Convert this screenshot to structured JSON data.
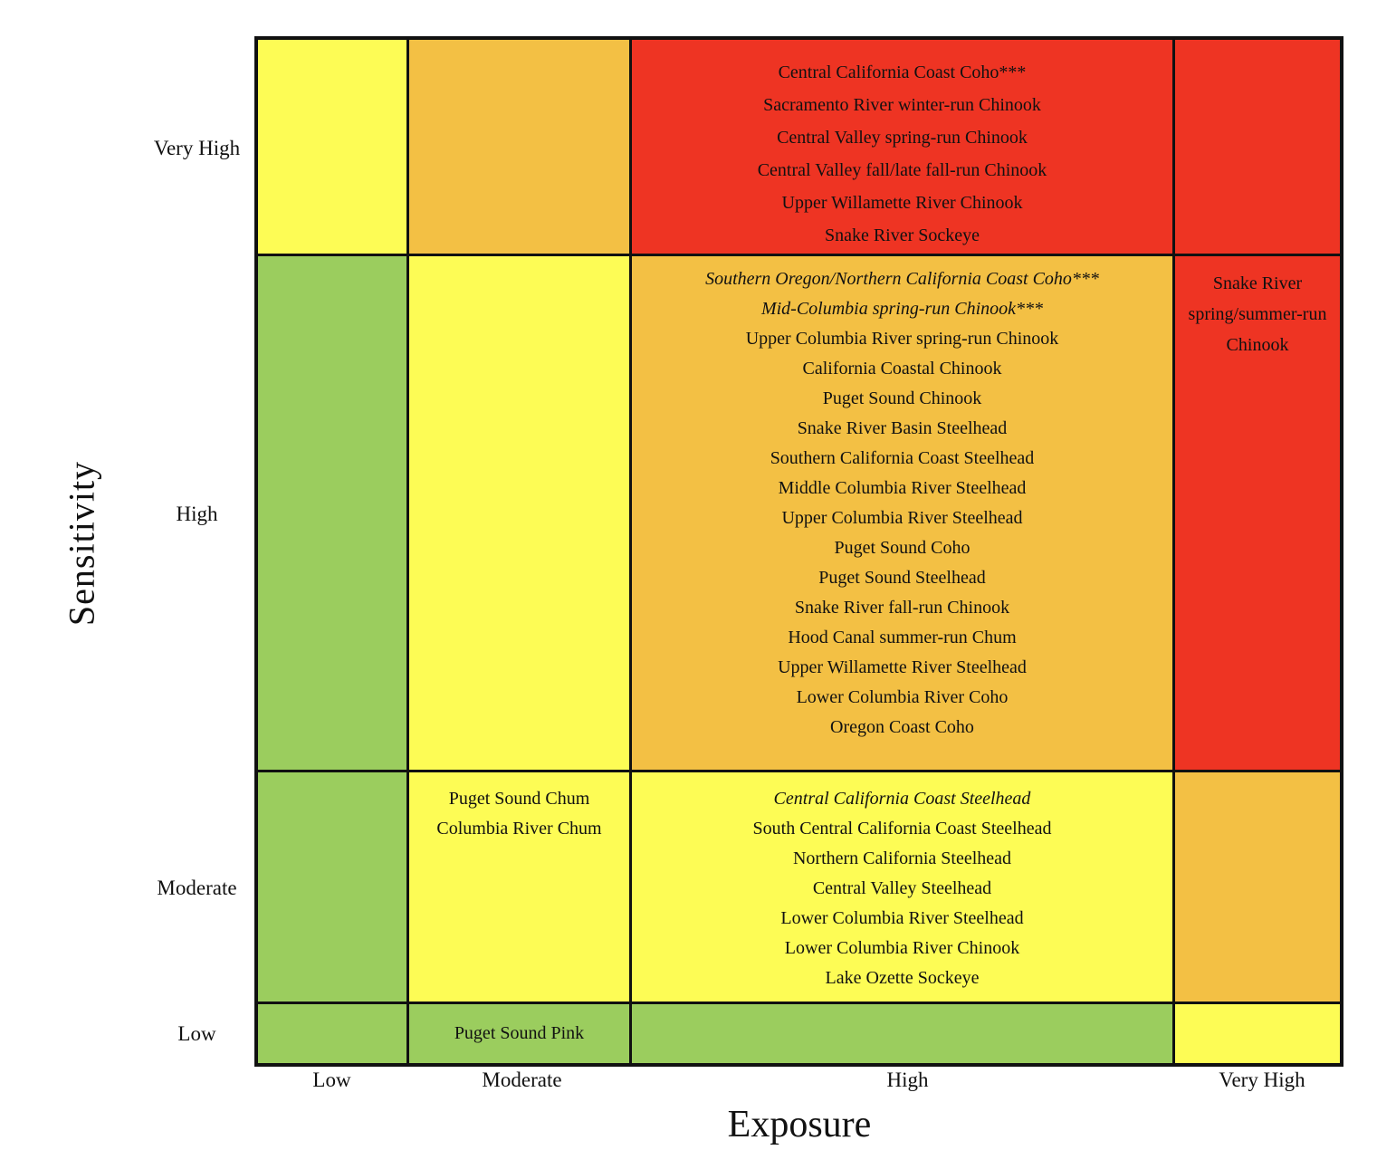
{
  "colors": {
    "green": "#9bcd5e",
    "yellow": "#fdfc55",
    "orange": "#f3c044",
    "red": "#ee3423",
    "border": "#111111"
  },
  "chart_data": {
    "type": "heatmap",
    "xlabel": "Exposure",
    "ylabel": "Sensitivity",
    "x_categories": [
      "Low",
      "Moderate",
      "High",
      "Very High"
    ],
    "y_categories": [
      "Very High",
      "High",
      "Moderate",
      "Low"
    ],
    "rows": [
      {
        "sensitivity": "Very High",
        "cells": [
          {
            "color": "yellow",
            "items": []
          },
          {
            "color": "orange",
            "items": []
          },
          {
            "color": "red",
            "items": [
              {
                "text": "Central California Coast Coho***",
                "italic": false
              },
              {
                "text": "Sacramento River winter-run Chinook",
                "italic": false
              },
              {
                "text": "Central Valley spring-run Chinook",
                "italic": false
              },
              {
                "text": "Central Valley fall/late fall-run Chinook",
                "italic": false
              },
              {
                "text": "Upper Willamette River Chinook",
                "italic": false
              },
              {
                "text": "Snake River Sockeye",
                "italic": false
              }
            ]
          },
          {
            "color": "red",
            "items": []
          }
        ]
      },
      {
        "sensitivity": "High",
        "cells": [
          {
            "color": "green",
            "items": []
          },
          {
            "color": "yellow",
            "items": []
          },
          {
            "color": "orange",
            "items": [
              {
                "text": "Southern Oregon/Northern California Coast Coho***",
                "italic": true
              },
              {
                "text": "Mid-Columbia spring-run Chinook***",
                "italic": true
              },
              {
                "text": "Upper Columbia River spring-run Chinook",
                "italic": false
              },
              {
                "text": "California Coastal Chinook",
                "italic": false
              },
              {
                "text": "Puget Sound Chinook",
                "italic": false
              },
              {
                "text": "Snake River Basin Steelhead",
                "italic": false
              },
              {
                "text": "Southern California Coast Steelhead",
                "italic": false
              },
              {
                "text": "Middle Columbia River Steelhead",
                "italic": false
              },
              {
                "text": "Upper Columbia River Steelhead",
                "italic": false
              },
              {
                "text": "Puget Sound Coho",
                "italic": false
              },
              {
                "text": "Puget Sound Steelhead",
                "italic": false
              },
              {
                "text": "Snake River fall-run Chinook",
                "italic": false
              },
              {
                "text": "Hood Canal summer-run Chum",
                "italic": false
              },
              {
                "text": "Upper Willamette River Steelhead",
                "italic": false
              },
              {
                "text": "Lower Columbia River Coho",
                "italic": false
              },
              {
                "text": "Oregon Coast Coho",
                "italic": false
              }
            ]
          },
          {
            "color": "red",
            "items": [
              {
                "text": "Snake River spring/summer-run Chinook",
                "italic": false
              }
            ]
          }
        ]
      },
      {
        "sensitivity": "Moderate",
        "cells": [
          {
            "color": "green",
            "items": []
          },
          {
            "color": "yellow",
            "items": [
              {
                "text": "Puget Sound Chum",
                "italic": false
              },
              {
                "text": "Columbia River Chum",
                "italic": false
              }
            ]
          },
          {
            "color": "yellow",
            "items": [
              {
                "text": "Central California Coast Steelhead",
                "italic": true
              },
              {
                "text": "South Central California Coast Steelhead",
                "italic": false
              },
              {
                "text": "Northern California Steelhead",
                "italic": false
              },
              {
                "text": "Central Valley Steelhead",
                "italic": false
              },
              {
                "text": "Lower Columbia River Steelhead",
                "italic": false
              },
              {
                "text": "Lower Columbia River Chinook",
                "italic": false
              },
              {
                "text": "Lake Ozette Sockeye",
                "italic": false
              }
            ]
          },
          {
            "color": "orange",
            "items": []
          }
        ]
      },
      {
        "sensitivity": "Low",
        "cells": [
          {
            "color": "green",
            "items": []
          },
          {
            "color": "green",
            "items": [
              {
                "text": "Puget Sound Pink",
                "italic": false
              }
            ]
          },
          {
            "color": "green",
            "items": []
          },
          {
            "color": "yellow",
            "items": []
          }
        ]
      }
    ]
  }
}
